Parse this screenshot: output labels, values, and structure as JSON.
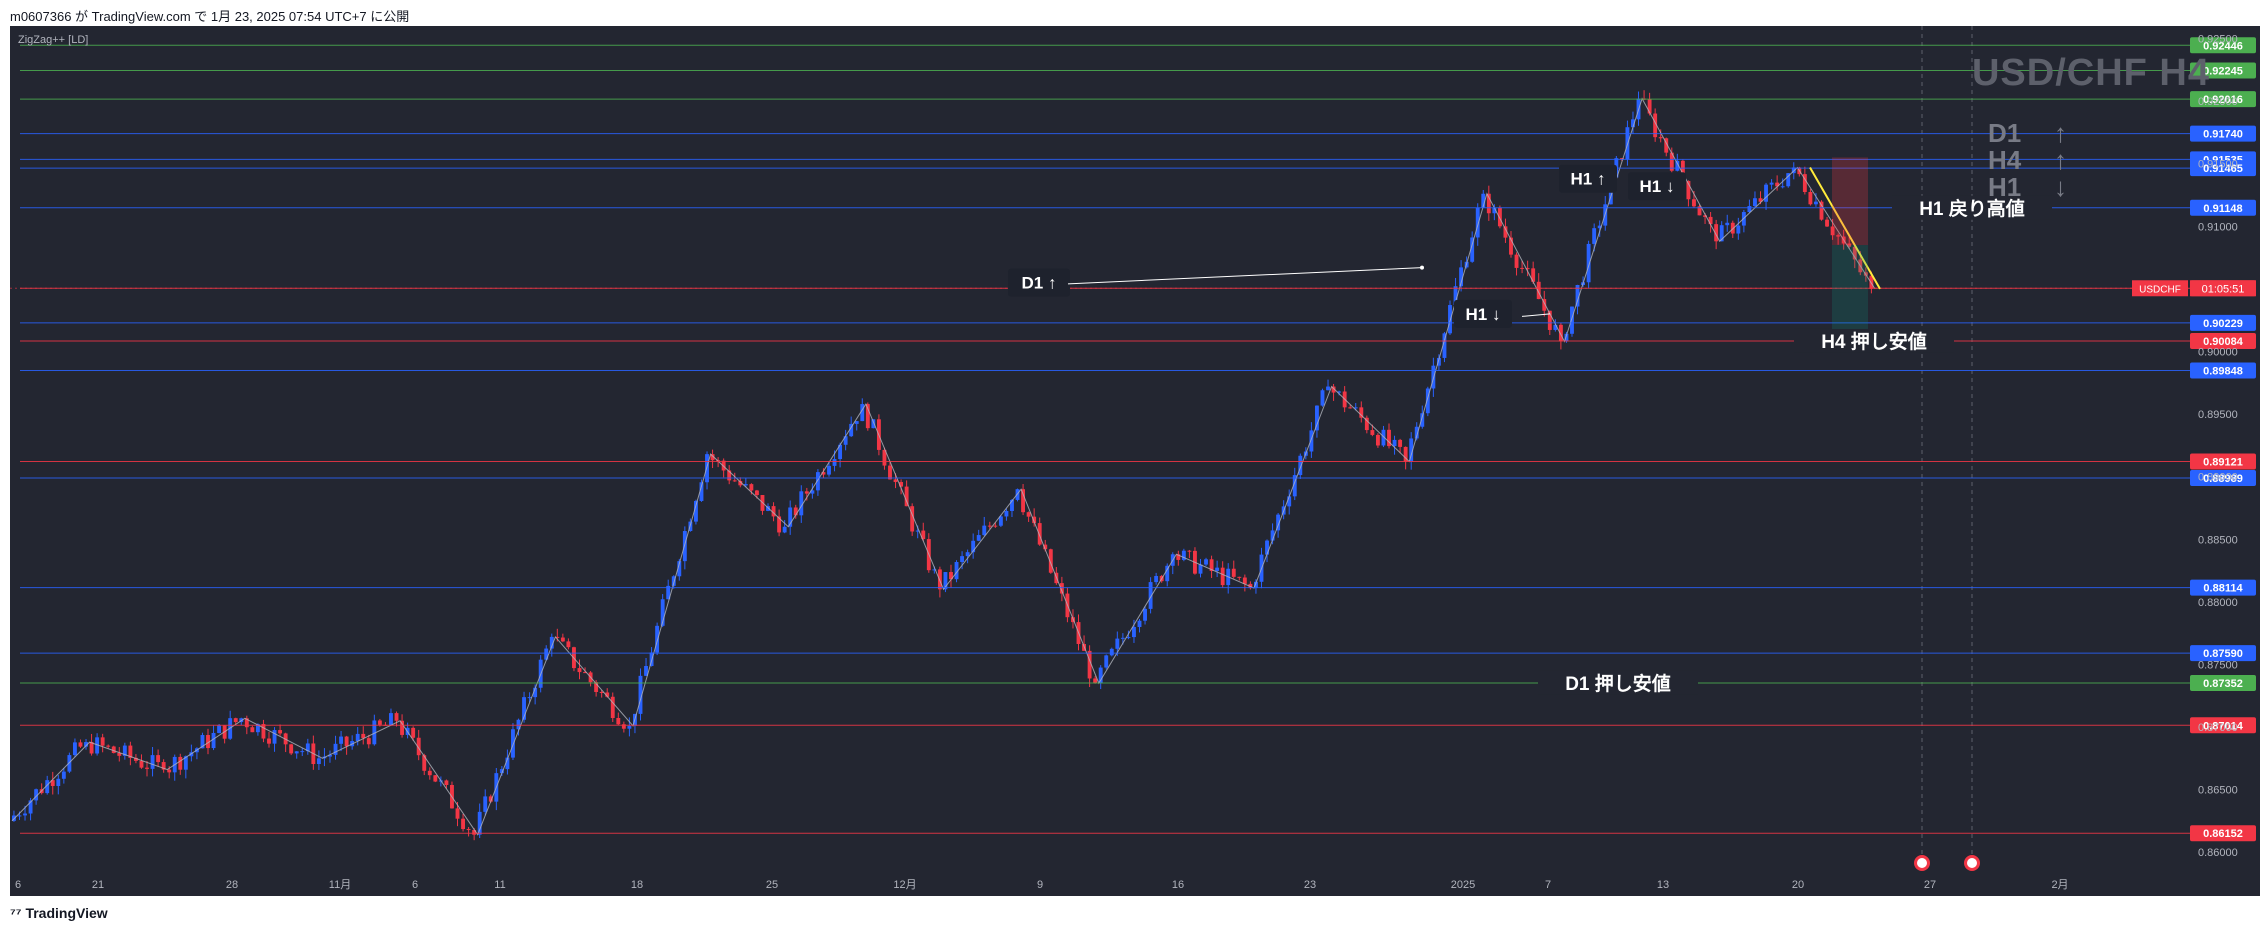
{
  "header": {
    "publish_info": "m0607366 が TradingView.com で 1月 23, 2025 07:54 UTC+7 に公開"
  },
  "footer": {
    "logo_text": "TradingView"
  },
  "indicator": {
    "label": "ZigZag++ [LD]"
  },
  "watermark": {
    "title": "USD/CHF H4"
  },
  "trend_panel": {
    "rows": [
      {
        "label": "D1",
        "arrow": "↑"
      },
      {
        "label": "H4",
        "arrow": "↑"
      },
      {
        "label": "H1",
        "arrow": "↓"
      }
    ]
  },
  "colors": {
    "background": "#232631",
    "up_candle": "#2962ff",
    "down_candle": "#f23645",
    "blue_level": "#2962ff",
    "red_level": "#f23645",
    "green_level": "#4caf50",
    "zigzag": "#b2b5be",
    "trendline": "#ffeb3b"
  },
  "chart_data": {
    "type": "candlestick",
    "title": "USD/CHF H4",
    "symbol": "USDCHF",
    "countdown": "01:05:51",
    "last_price": 0.90505,
    "ylim": [
      0.8585,
      0.926
    ],
    "y_ticks": [
      "0.86000",
      "0.86500",
      "0.87000",
      "0.87500",
      "0.88000",
      "0.88500",
      "0.89000",
      "0.89500",
      "0.90000",
      "0.90500",
      "0.91000",
      "0.91500",
      "0.92000",
      "0.92500"
    ],
    "x_ticks": [
      "6",
      "21",
      "28",
      "11月",
      "6",
      "11",
      "18",
      "25",
      "12月",
      "9",
      "16",
      "23",
      "2025",
      "7",
      "13",
      "20",
      "27",
      "2月"
    ],
    "price_levels": [
      {
        "value": "0.92446",
        "color": "green"
      },
      {
        "value": "0.92245",
        "color": "green"
      },
      {
        "value": "0.92016",
        "color": "green"
      },
      {
        "value": "0.91740",
        "color": "blue"
      },
      {
        "value": "0.91535",
        "color": "blue"
      },
      {
        "value": "0.91465",
        "color": "blue"
      },
      {
        "value": "0.91148",
        "color": "blue"
      },
      {
        "value": "0.90505",
        "color": "red"
      },
      {
        "value": "0.90229",
        "color": "blue"
      },
      {
        "value": "0.90084",
        "color": "red"
      },
      {
        "value": "0.89848",
        "color": "blue"
      },
      {
        "value": "0.89121",
        "color": "red"
      },
      {
        "value": "0.88989",
        "color": "blue"
      },
      {
        "value": "0.88114",
        "color": "blue"
      },
      {
        "value": "0.87590",
        "color": "blue"
      },
      {
        "value": "0.87352",
        "color": "green"
      },
      {
        "value": "0.87014",
        "color": "red"
      },
      {
        "value": "0.86152",
        "color": "red"
      }
    ],
    "annotations": [
      {
        "text": "D1 ↑",
        "kind": "box"
      },
      {
        "text": "H1 ↓",
        "kind": "box"
      },
      {
        "text": "H1 ↑",
        "kind": "box"
      },
      {
        "text": "H1 ↓",
        "kind": "box"
      },
      {
        "text": "H1 戻り高値",
        "kind": "level_label"
      },
      {
        "text": "H4 押し安値",
        "kind": "level_label"
      },
      {
        "text": "D1 押し安値",
        "kind": "level_label"
      }
    ],
    "zigzag_pivots": [
      0.8625,
      0.8688,
      0.8666,
      0.8707,
      0.8675,
      0.8705,
      0.8614,
      0.8772,
      0.8701,
      0.8918,
      0.886,
      0.8958,
      0.881,
      0.889,
      0.8735,
      0.8838,
      0.8811,
      0.8972,
      0.8912,
      0.9126,
      0.9008,
      0.9202,
      0.9088,
      0.9147,
      0.905
    ],
    "grid": false
  }
}
